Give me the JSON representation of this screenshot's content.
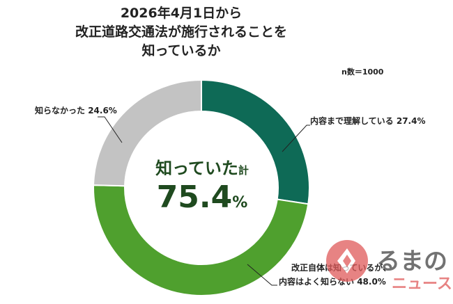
{
  "chart_data": {
    "type": "pie",
    "title_lines": [
      "2026年4月1日から",
      "改正道路交通法が施行されることを",
      "知っているか"
    ],
    "sample_note": "n数＝1000",
    "center_label": "知っていた",
    "center_label_suffix": "計",
    "center_value": "75.4",
    "center_unit": "%",
    "slices": [
      {
        "label": "内容まで理解している",
        "value": 27.4,
        "display": "27.4%",
        "color": "#0e6a56"
      },
      {
        "label": "改正自体は知っているが、内容はよく知らない",
        "label_line1": "改正自体は知っているが、",
        "label_line2": "内容はよく知らない",
        "value": 48.0,
        "display": "48.0%",
        "color": "#4fa02e"
      },
      {
        "label": "知らなかった",
        "value": 24.6,
        "display": "24.6%",
        "color": "#c3c3c3"
      }
    ]
  },
  "watermark_text": "くるまのニュース",
  "watermark_parts": {
    "main": "るまの",
    "sub": "ニュース"
  }
}
